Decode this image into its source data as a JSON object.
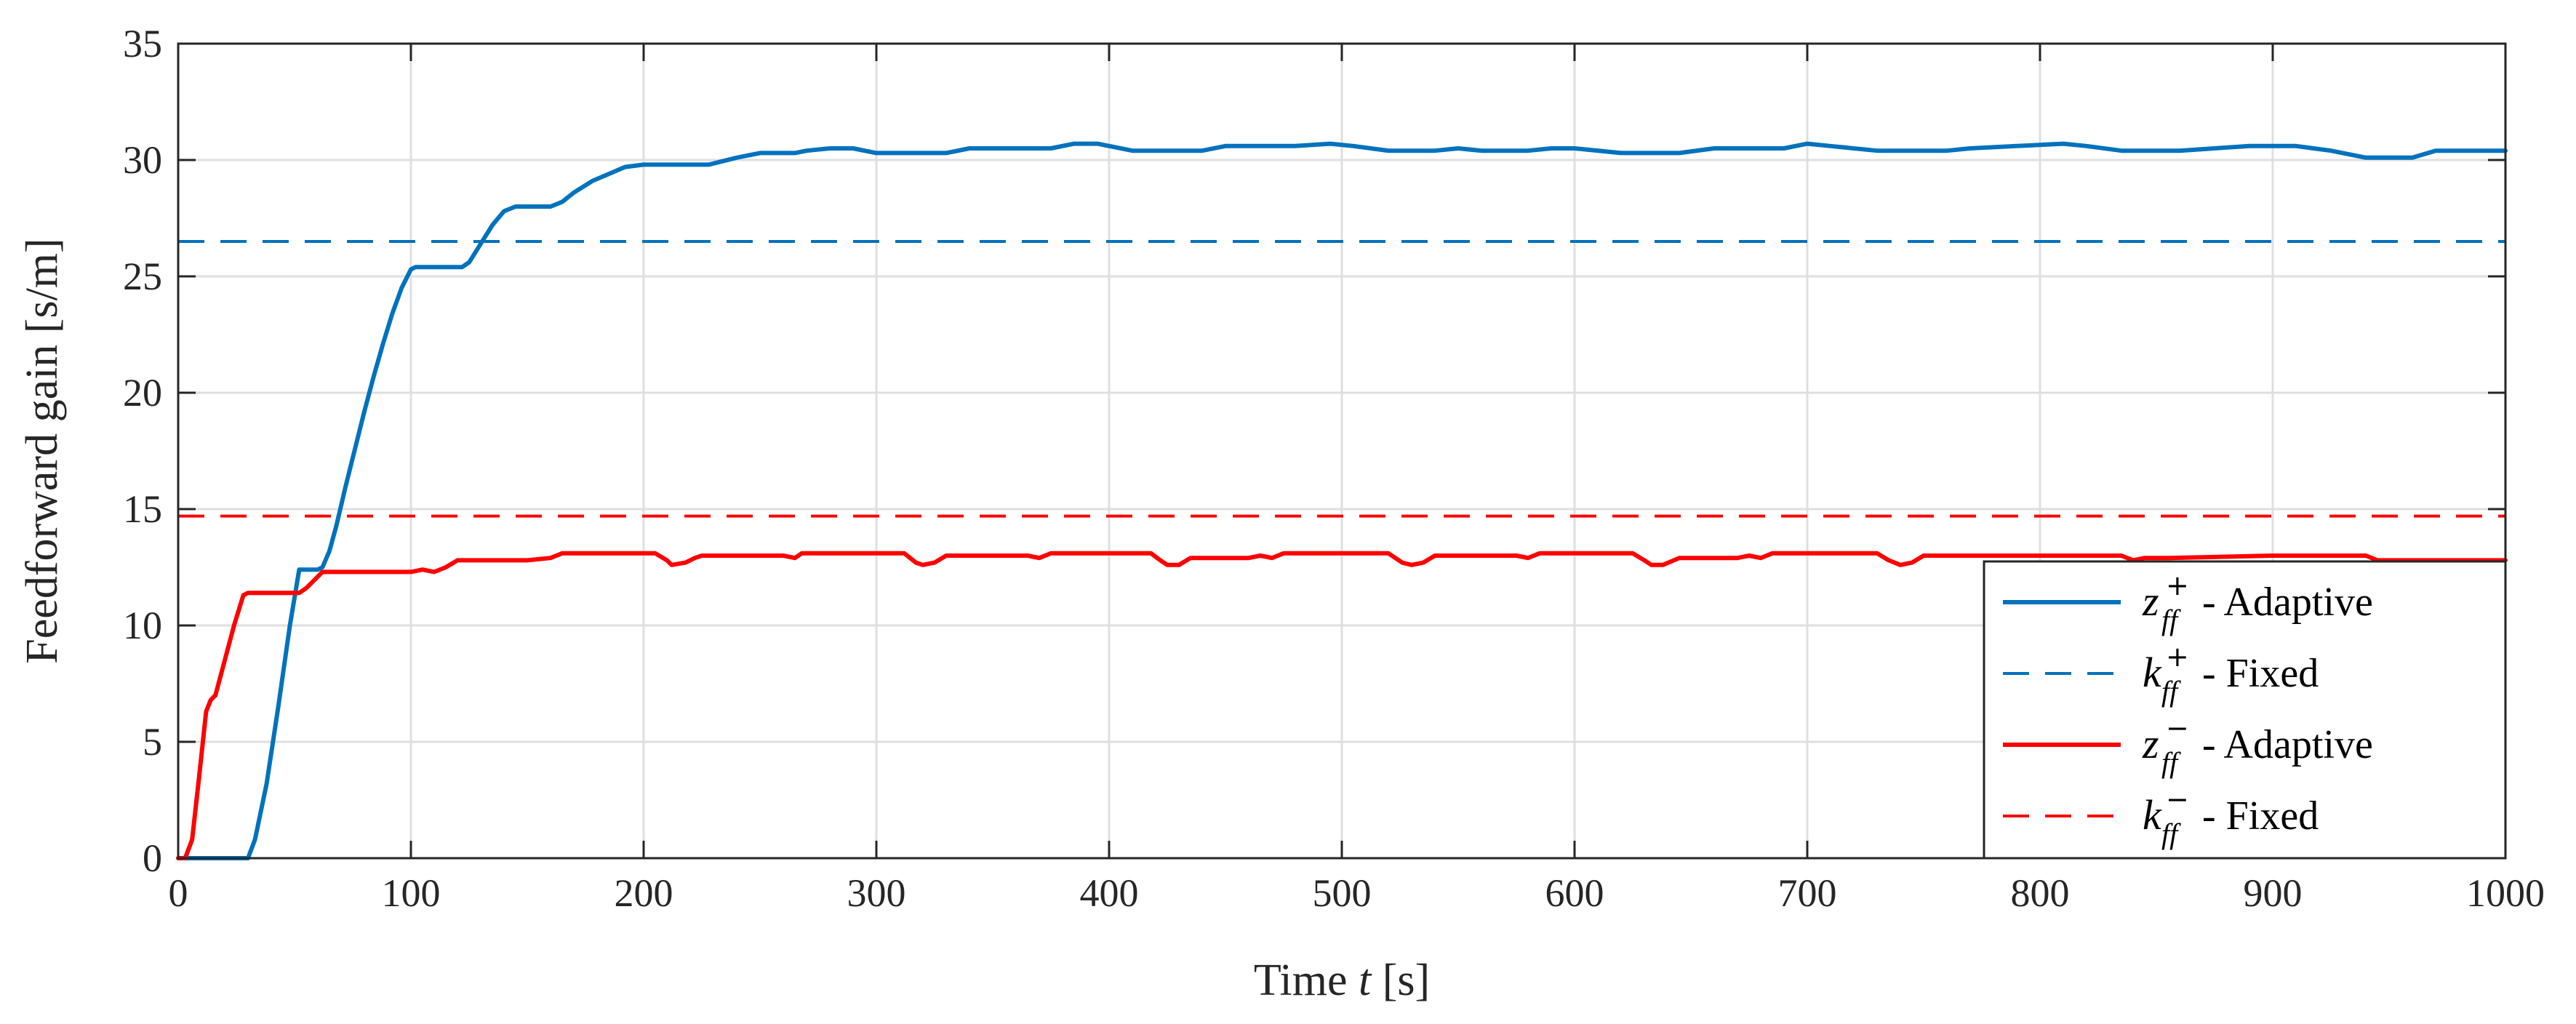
{
  "chart_data": {
    "type": "line",
    "title": "",
    "xlabel_prefix": "Time ",
    "xlabel_var": "t",
    "xlabel_unit": " [s]",
    "ylabel": "Feedforward gain [s/m]",
    "xlim": [
      0,
      1000
    ],
    "ylim": [
      0,
      35
    ],
    "x_ticks": [
      0,
      100,
      200,
      300,
      400,
      500,
      600,
      700,
      800,
      900,
      1000
    ],
    "y_ticks": [
      0,
      5,
      10,
      15,
      20,
      25,
      30,
      35
    ],
    "grid": true,
    "legend_position": "lower-right",
    "series": [
      {
        "name": "z_ff^+ - Adaptive",
        "symbol": "z",
        "sub": "ff",
        "sup": "+",
        "suffix": " - Adaptive",
        "color": "#0072BD",
        "style": "solid",
        "x": [
          0,
          30,
          33,
          38,
          43,
          48,
          52,
          60,
          62,
          65,
          68,
          72,
          76,
          80,
          84,
          88,
          92,
          96,
          100,
          102,
          110,
          122,
          125,
          130,
          135,
          140,
          145,
          150,
          160,
          165,
          170,
          178,
          185,
          192,
          200,
          205,
          228,
          232,
          240,
          250,
          265,
          270,
          280,
          290,
          300,
          305,
          330,
          340,
          350,
          375,
          385,
          395,
          410,
          420,
          440,
          450,
          470,
          480,
          495,
          505,
          520,
          540,
          550,
          560,
          580,
          590,
          600,
          620,
          630,
          645,
          660,
          670,
          690,
          700,
          710,
          730,
          740,
          760,
          770,
          790,
          810,
          820,
          835,
          860,
          875,
          890,
          910,
          925,
          940,
          960,
          970,
          985,
          1000
        ],
        "y": [
          0,
          0,
          0.8,
          3.2,
          6.5,
          10,
          12.4,
          12.4,
          12.5,
          13.2,
          14.3,
          16,
          17.6,
          19.2,
          20.7,
          22.1,
          23.4,
          24.5,
          25.3,
          25.4,
          25.4,
          25.4,
          25.6,
          26.4,
          27.2,
          27.8,
          28,
          28,
          28,
          28.2,
          28.6,
          29.1,
          29.4,
          29.7,
          29.8,
          29.8,
          29.8,
          29.9,
          30.1,
          30.3,
          30.3,
          30.4,
          30.5,
          30.5,
          30.3,
          30.3,
          30.3,
          30.5,
          30.5,
          30.5,
          30.7,
          30.7,
          30.4,
          30.4,
          30.4,
          30.6,
          30.6,
          30.6,
          30.7,
          30.6,
          30.4,
          30.4,
          30.5,
          30.4,
          30.4,
          30.5,
          30.5,
          30.3,
          30.3,
          30.3,
          30.5,
          30.5,
          30.5,
          30.7,
          30.6,
          30.4,
          30.4,
          30.4,
          30.5,
          30.6,
          30.7,
          30.6,
          30.4,
          30.4,
          30.5,
          30.6,
          30.6,
          30.4,
          30.1,
          30.1,
          30.4,
          30.4,
          30.4
        ]
      },
      {
        "name": "k_ff^+ - Fixed",
        "symbol": "k",
        "sub": "ff",
        "sup": "+",
        "suffix": " - Fixed",
        "color": "#0072BD",
        "style": "dashed",
        "x": [
          0,
          1000
        ],
        "y": [
          26.5,
          26.5
        ]
      },
      {
        "name": "z_ff^- - Adaptive",
        "symbol": "z",
        "sub": "ff",
        "sup": "−",
        "suffix": " - Adaptive",
        "color": "#FF0000",
        "style": "solid",
        "x": [
          0,
          3,
          6,
          9,
          12,
          14,
          16,
          20,
          24,
          28,
          30,
          50,
          52,
          55,
          58,
          60,
          62,
          70,
          100,
          105,
          110,
          115,
          120,
          122,
          125,
          150,
          160,
          165,
          170,
          205,
          210,
          212,
          218,
          222,
          225,
          230,
          260,
          265,
          268,
          275,
          312,
          317,
          320,
          325,
          330,
          360,
          365,
          370,
          375,
          418,
          422,
          425,
          430,
          435,
          460,
          465,
          470,
          475,
          520,
          526,
          530,
          535,
          540,
          575,
          580,
          585,
          590,
          625,
          630,
          633,
          638,
          645,
          670,
          675,
          680,
          685,
          730,
          735,
          740,
          745,
          750,
          780,
          790,
          800,
          835,
          840,
          845,
          855,
          900,
          940,
          945,
          960,
          1000
        ],
        "y": [
          0,
          0,
          0.8,
          3.5,
          6.3,
          6.8,
          7,
          8.5,
          10,
          11.3,
          11.4,
          11.4,
          11.4,
          11.6,
          11.9,
          12.1,
          12.3,
          12.3,
          12.3,
          12.4,
          12.3,
          12.5,
          12.8,
          12.8,
          12.8,
          12.8,
          12.9,
          13.1,
          13.1,
          13.1,
          12.8,
          12.6,
          12.7,
          12.9,
          13,
          13,
          13,
          12.9,
          13.1,
          13.1,
          13.1,
          12.7,
          12.6,
          12.7,
          13,
          13,
          13,
          12.9,
          13.1,
          13.1,
          12.8,
          12.6,
          12.6,
          12.9,
          12.9,
          13,
          12.9,
          13.1,
          13.1,
          12.7,
          12.6,
          12.7,
          13,
          13,
          12.9,
          13.1,
          13.1,
          13.1,
          12.8,
          12.6,
          12.6,
          12.9,
          12.9,
          13,
          12.9,
          13.1,
          13.1,
          12.8,
          12.6,
          12.7,
          13,
          13,
          13,
          13,
          13,
          12.8,
          12.9,
          12.9,
          13,
          13,
          12.8,
          12.8,
          12.8
        ]
      },
      {
        "name": "k_ff^- - Fixed",
        "symbol": "k",
        "sub": "ff",
        "sup": "−",
        "suffix": " - Fixed",
        "color": "#FF0000",
        "style": "dashed",
        "x": [
          0,
          1000
        ],
        "y": [
          14.7,
          14.7
        ]
      }
    ]
  }
}
